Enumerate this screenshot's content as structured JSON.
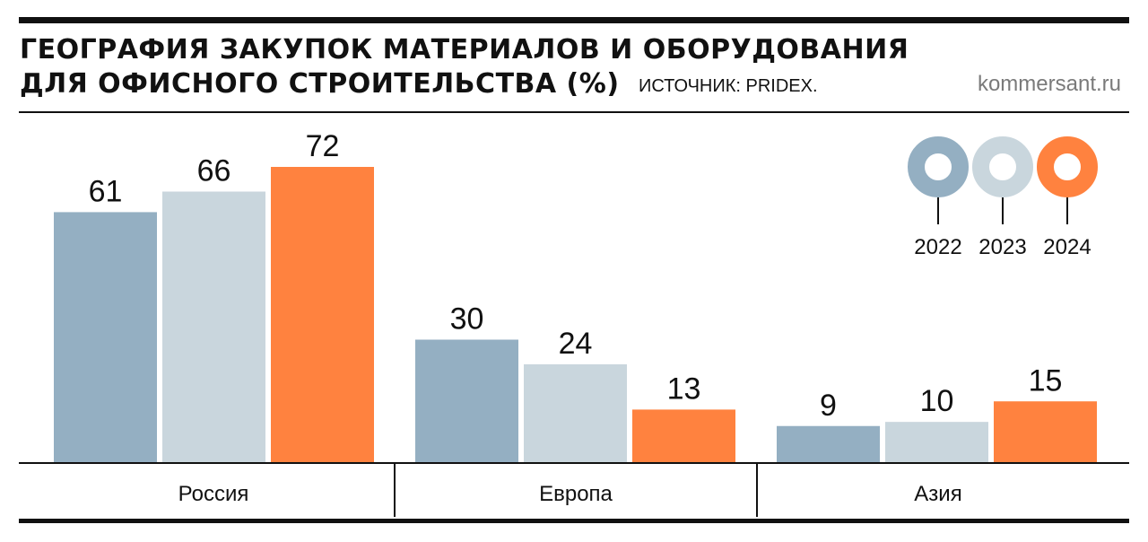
{
  "header": {
    "title_line1": "ГЕОГРАФИЯ ЗАКУПОК МАТЕРИАЛОВ И ОБОРУДОВАНИЯ",
    "title_line2": "ДЛЯ ОФИСНОГО СТРОИТЕЛЬСТВА (%)",
    "source": "ИСТОЧНИК: PRIDEX.",
    "site": "kommersant.ru"
  },
  "chart_data": {
    "type": "bar",
    "title": "ГЕОГРАФИЯ ЗАКУПОК МАТЕРИАЛОВ И ОБОРУДОВАНИЯ ДЛЯ ОФИСНОГО СТРОИТЕЛЬСТВА (%)",
    "categories": [
      "Россия",
      "Европа",
      "Азия"
    ],
    "series": [
      {
        "name": "2022",
        "color": "#94afc2",
        "values": [
          61,
          30,
          9
        ]
      },
      {
        "name": "2023",
        "color": "#c9d6dd",
        "values": [
          66,
          24,
          10
        ]
      },
      {
        "name": "2024",
        "color": "#ff823f",
        "values": [
          72,
          13,
          15
        ]
      }
    ],
    "ylim": [
      0,
      72
    ],
    "grid": false,
    "legend_position": "top-right",
    "legend_style": "ring"
  }
}
